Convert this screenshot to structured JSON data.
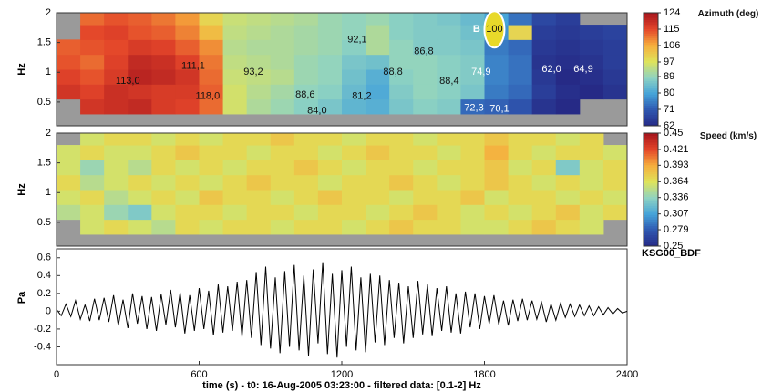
{
  "chart_data": [
    {
      "type": "heatmap",
      "ylabel": "Hz",
      "colorbar_label": "Azimuth (deg)",
      "xlim": [
        0,
        2400
      ],
      "ylim": [
        0.1,
        2
      ],
      "yticks": [
        0.5,
        1,
        1.5,
        2
      ],
      "xbins": [
        0,
        100,
        200,
        300,
        400,
        500,
        600,
        700,
        800,
        900,
        1000,
        1100,
        1200,
        1300,
        1400,
        1500,
        1600,
        1700,
        1800,
        1900,
        2000,
        2100,
        2200,
        2300,
        2400
      ],
      "ybins": [
        0.1,
        0.3,
        0.55,
        0.8,
        1.05,
        1.3,
        1.55,
        1.8,
        2.0
      ],
      "clim": [
        62,
        124
      ],
      "cticks": [
        124,
        115,
        106,
        97,
        89,
        80,
        71,
        62
      ],
      "colors": [
        "#262a86",
        "#2f57b0",
        "#45a3d9",
        "#8fd3c2",
        "#dfe35a",
        "#f6ae3d",
        "#e4462a",
        "#a5141d"
      ],
      "null_color": "#9a9a9a",
      "z": [
        [
          null,
          null,
          null,
          null,
          null,
          null,
          null,
          null,
          null,
          null,
          null,
          null,
          null,
          null,
          null,
          null,
          null,
          null,
          null,
          null,
          null,
          null,
          null,
          null
        ],
        [
          null,
          118,
          119,
          120,
          117,
          116,
          112,
          96,
          92,
          90,
          88,
          86,
          83,
          82,
          86,
          88,
          87,
          73,
          72,
          70,
          64,
          62,
          null,
          null
        ],
        [
          118,
          116,
          119,
          118,
          117,
          117,
          113,
          96,
          93,
          91,
          89,
          88,
          84,
          81,
          87,
          89,
          88,
          86,
          75,
          73,
          66,
          63,
          62,
          64
        ],
        [
          116,
          114,
          117,
          121,
          120,
          118,
          112,
          95,
          94,
          93,
          90,
          89,
          85,
          82,
          88,
          89,
          88,
          87,
          76,
          74,
          65,
          62,
          63,
          65
        ],
        [
          114,
          112,
          116,
          120,
          119,
          116,
          111,
          94,
          93,
          92,
          90,
          89,
          86,
          85,
          89,
          89,
          88,
          87,
          76,
          74,
          64,
          63,
          64,
          66
        ],
        [
          113,
          114,
          115,
          117,
          116,
          113,
          109,
          93,
          92,
          92,
          91,
          90,
          88,
          92,
          89,
          87,
          87,
          86,
          75,
          73,
          65,
          64,
          65,
          66
        ],
        [
          null,
          115,
          116,
          114,
          113,
          110,
          104,
          94,
          93,
          92,
          91,
          90,
          89,
          92,
          88,
          87,
          87,
          85,
          78,
          100,
          66,
          65,
          66,
          67
        ],
        [
          null,
          112,
          114,
          113,
          111,
          108,
          100,
          95,
          94,
          93,
          92,
          90,
          89,
          90,
          88,
          87,
          86,
          84,
          80,
          74,
          68,
          66,
          null,
          null
        ]
      ],
      "annotations": [
        {
          "text": "113,0",
          "x": 300,
          "y": 0.85,
          "color": "#111"
        },
        {
          "text": "111,1",
          "x": 575,
          "y": 1.1,
          "color": "#111"
        },
        {
          "text": "118,0",
          "x": 636,
          "y": 0.6,
          "color": "#111"
        },
        {
          "text": "93,2",
          "x": 828,
          "y": 1.0,
          "color": "#111"
        },
        {
          "text": "88,6",
          "x": 1046,
          "y": 0.62,
          "color": "#111"
        },
        {
          "text": "84,0",
          "x": 1096,
          "y": 0.35,
          "color": "#111"
        },
        {
          "text": "81,2",
          "x": 1284,
          "y": 0.6,
          "color": "#111"
        },
        {
          "text": "92,1",
          "x": 1265,
          "y": 1.55,
          "color": "#111"
        },
        {
          "text": "88,8",
          "x": 1415,
          "y": 1.0,
          "color": "#111"
        },
        {
          "text": "86,8",
          "x": 1545,
          "y": 1.35,
          "color": "#111"
        },
        {
          "text": "88,4",
          "x": 1652,
          "y": 0.85,
          "color": "#111"
        },
        {
          "text": "74,9",
          "x": 1786,
          "y": 1.0,
          "color": "#fff"
        },
        {
          "text": "72,3",
          "x": 1756,
          "y": 0.4,
          "color": "#fff"
        },
        {
          "text": "70,1",
          "x": 1863,
          "y": 0.38,
          "color": "#fff"
        },
        {
          "text": "62,0",
          "x": 2082,
          "y": 1.05,
          "color": "#fff"
        },
        {
          "text": "64,9",
          "x": 2216,
          "y": 1.05,
          "color": "#fff"
        },
        {
          "text": "B",
          "x": 1767,
          "y": 1.72,
          "color": "#fff"
        },
        {
          "text": "100",
          "x": 1842,
          "y": 1.72,
          "color": "#111",
          "circled": true
        }
      ]
    },
    {
      "type": "heatmap",
      "ylabel": "Hz",
      "colorbar_label": "Speed (km/s)",
      "xlim": [
        0,
        2400
      ],
      "ylim": [
        0.1,
        2
      ],
      "yticks": [
        0.5,
        1,
        1.5,
        2
      ],
      "xbins": [
        0,
        100,
        200,
        300,
        400,
        500,
        600,
        700,
        800,
        900,
        1000,
        1100,
        1200,
        1300,
        1400,
        1500,
        1600,
        1700,
        1800,
        1900,
        2000,
        2100,
        2200,
        2300,
        2400
      ],
      "ybins": [
        0.1,
        0.3,
        0.55,
        0.8,
        1.05,
        1.3,
        1.55,
        1.8,
        2.0
      ],
      "clim": [
        0.25,
        0.45
      ],
      "cticks": [
        0.45,
        0.421,
        0.393,
        0.364,
        0.336,
        0.307,
        0.279,
        0.25
      ],
      "colors": [
        "#262a86",
        "#2f57b0",
        "#45a3d9",
        "#8fd3c2",
        "#dfe35a",
        "#f6ae3d",
        "#e4462a",
        "#a5141d"
      ],
      "null_color": "#9a9a9a",
      "z": [
        [
          null,
          null,
          null,
          null,
          null,
          null,
          null,
          null,
          null,
          null,
          null,
          null,
          null,
          null,
          null,
          null,
          null,
          null,
          null,
          null,
          null,
          null,
          null,
          null
        ],
        [
          null,
          0.36,
          0.37,
          0.36,
          0.35,
          0.37,
          0.36,
          0.37,
          0.37,
          0.36,
          0.37,
          0.37,
          0.36,
          0.37,
          0.38,
          0.37,
          0.37,
          0.36,
          0.36,
          0.37,
          0.38,
          0.37,
          0.36,
          null
        ],
        [
          0.35,
          0.36,
          0.34,
          0.33,
          0.36,
          0.37,
          0.37,
          0.36,
          0.37,
          0.37,
          0.36,
          0.37,
          0.37,
          0.36,
          0.37,
          0.38,
          0.37,
          0.36,
          0.37,
          0.36,
          0.37,
          0.38,
          0.36,
          0.37
        ],
        [
          0.36,
          0.37,
          0.35,
          0.36,
          0.37,
          0.36,
          0.38,
          0.37,
          0.37,
          0.36,
          0.37,
          0.38,
          0.37,
          0.37,
          0.36,
          0.37,
          0.37,
          0.38,
          0.36,
          0.37,
          0.37,
          0.36,
          0.37,
          0.36
        ],
        [
          0.37,
          0.35,
          0.36,
          0.37,
          0.36,
          0.37,
          0.36,
          0.37,
          0.38,
          0.37,
          0.37,
          0.36,
          0.37,
          0.37,
          0.38,
          0.37,
          0.36,
          0.37,
          0.38,
          0.37,
          0.36,
          0.37,
          0.36,
          0.37
        ],
        [
          0.36,
          0.34,
          0.36,
          0.35,
          0.37,
          0.36,
          0.37,
          0.36,
          0.37,
          0.37,
          0.38,
          0.37,
          0.36,
          0.37,
          0.37,
          0.36,
          0.37,
          0.37,
          0.38,
          0.36,
          0.37,
          0.33,
          0.36,
          0.37
        ],
        [
          0.36,
          0.37,
          0.36,
          0.36,
          0.37,
          0.38,
          0.37,
          0.37,
          0.36,
          0.37,
          0.37,
          0.36,
          0.37,
          0.38,
          0.37,
          0.37,
          0.36,
          0.37,
          0.39,
          0.37,
          0.36,
          0.37,
          0.37,
          0.36
        ],
        [
          null,
          0.36,
          0.37,
          0.37,
          0.36,
          0.37,
          0.36,
          0.37,
          0.37,
          0.38,
          0.37,
          0.37,
          0.36,
          0.37,
          0.37,
          0.36,
          0.37,
          0.37,
          0.38,
          0.37,
          0.37,
          0.36,
          0.37,
          null
        ]
      ]
    },
    {
      "type": "line",
      "title": "KSG00_BDF",
      "ylabel": "Pa",
      "xlabel": "time (s) - t0: 16-Aug-2005 03:23:00 - filtered data: [0.1-2] Hz",
      "xlim": [
        0,
        2400
      ],
      "xticks": [
        0,
        600,
        1200,
        1800,
        2400
      ],
      "ylim": [
        -0.6,
        0.7
      ],
      "yticks": [
        0.6,
        0.4,
        0.2,
        0,
        -0.2,
        -0.4
      ],
      "color": "#000000",
      "x": [
        0,
        20,
        40,
        60,
        80,
        100,
        120,
        140,
        160,
        180,
        200,
        220,
        240,
        260,
        280,
        300,
        320,
        340,
        360,
        380,
        400,
        420,
        440,
        460,
        480,
        500,
        520,
        540,
        560,
        580,
        600,
        620,
        640,
        660,
        680,
        700,
        720,
        740,
        760,
        780,
        800,
        820,
        840,
        860,
        880,
        900,
        920,
        940,
        960,
        980,
        1000,
        1020,
        1040,
        1060,
        1080,
        1100,
        1120,
        1140,
        1160,
        1180,
        1200,
        1220,
        1240,
        1260,
        1280,
        1300,
        1320,
        1340,
        1360,
        1380,
        1400,
        1420,
        1440,
        1460,
        1480,
        1500,
        1520,
        1540,
        1560,
        1580,
        1600,
        1620,
        1640,
        1660,
        1680,
        1700,
        1720,
        1740,
        1760,
        1780,
        1800,
        1820,
        1840,
        1860,
        1880,
        1900,
        1920,
        1940,
        1960,
        1980,
        2000,
        2020,
        2040,
        2060,
        2080,
        2100,
        2120,
        2140,
        2160,
        2180,
        2200,
        2220,
        2240,
        2260,
        2280,
        2300,
        2320,
        2340,
        2360,
        2380,
        2400
      ],
      "values": [
        0.02,
        -0.05,
        0.08,
        -0.06,
        0.12,
        -0.09,
        0.07,
        -0.11,
        0.14,
        -0.1,
        0.15,
        -0.12,
        0.18,
        -0.16,
        0.13,
        -0.19,
        0.2,
        -0.14,
        0.17,
        -0.2,
        0.16,
        -0.22,
        0.19,
        -0.15,
        0.24,
        -0.18,
        0.21,
        -0.25,
        0.18,
        -0.22,
        0.26,
        -0.2,
        0.23,
        -0.27,
        0.3,
        -0.24,
        0.28,
        -0.22,
        0.33,
        -0.29,
        0.35,
        -0.3,
        0.44,
        -0.38,
        0.5,
        -0.42,
        0.38,
        -0.47,
        0.45,
        -0.4,
        0.52,
        -0.44,
        0.4,
        -0.5,
        0.47,
        -0.36,
        0.55,
        -0.48,
        0.42,
        -0.52,
        0.46,
        -0.4,
        0.5,
        -0.44,
        0.38,
        -0.46,
        0.42,
        -0.35,
        0.4,
        -0.38,
        0.35,
        -0.3,
        0.32,
        -0.36,
        0.28,
        -0.3,
        0.34,
        -0.26,
        0.3,
        -0.28,
        0.26,
        -0.22,
        0.28,
        -0.24,
        0.2,
        -0.25,
        0.22,
        -0.18,
        0.2,
        -0.2,
        0.17,
        -0.14,
        0.18,
        -0.15,
        0.12,
        -0.16,
        0.13,
        -0.11,
        0.14,
        -0.1,
        0.12,
        -0.09,
        0.1,
        -0.12,
        0.08,
        -0.1,
        0.09,
        -0.07,
        0.08,
        -0.06,
        0.07,
        -0.05,
        0.06,
        -0.05,
        0.05,
        -0.04,
        0.04,
        -0.03,
        0.03,
        -0.02,
        0.0
      ]
    }
  ]
}
